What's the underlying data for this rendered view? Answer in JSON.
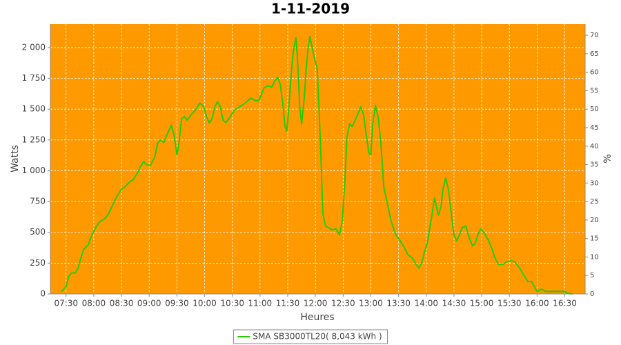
{
  "chart_data": {
    "type": "line",
    "title": "1-11-2019",
    "xlabel": "Heures",
    "ylabel": "Watts",
    "y2label": "%",
    "x": [
      "07:25",
      "07:30",
      "07:33",
      "07:36",
      "07:40",
      "07:43",
      "07:46",
      "07:49",
      "07:54",
      "07:58",
      "08:03",
      "08:07",
      "08:12",
      "08:16",
      "08:21",
      "08:25",
      "08:30",
      "08:34",
      "08:39",
      "08:43",
      "08:48",
      "08:51",
      "08:54",
      "08:57",
      "09:01",
      "09:06",
      "09:09",
      "09:12",
      "09:16",
      "09:19",
      "09:24",
      "09:27",
      "09:30",
      "09:32",
      "09:35",
      "09:38",
      "09:41",
      "09:46",
      "09:50",
      "09:55",
      "09:59",
      "10:02",
      "10:05",
      "10:08",
      "10:11",
      "10:14",
      "10:17",
      "10:20",
      "10:23",
      "10:28",
      "10:32",
      "10:38",
      "10:44",
      "10:50",
      "10:55",
      "10:59",
      "11:04",
      "11:08",
      "11:13",
      "11:16",
      "11:19",
      "11:22",
      "11:25",
      "11:27",
      "11:29",
      "11:31",
      "11:33",
      "11:36",
      "11:39",
      "11:41",
      "11:43",
      "11:45",
      "11:48",
      "11:50",
      "11:52",
      "11:54",
      "11:56",
      "11:59",
      "12:02",
      "12:04",
      "12:06",
      "12:08",
      "12:11",
      "12:14",
      "12:18",
      "12:22",
      "12:26",
      "12:29",
      "12:32",
      "12:34",
      "12:37",
      "12:40",
      "12:43",
      "12:46",
      "12:49",
      "12:52",
      "12:55",
      "12:58",
      "13:00",
      "13:02",
      "13:05",
      "13:08",
      "13:11",
      "13:14",
      "13:18",
      "13:22",
      "13:27",
      "13:31",
      "13:36",
      "13:40",
      "13:45",
      "13:49",
      "13:52",
      "13:55",
      "13:58",
      "14:01",
      "14:04",
      "14:07",
      "14:09",
      "14:11",
      "14:13",
      "14:16",
      "14:18",
      "14:21",
      "14:24",
      "14:27",
      "14:30",
      "14:33",
      "14:36",
      "14:39",
      "14:43",
      "14:46",
      "14:50",
      "14:53",
      "14:56",
      "14:59",
      "15:03",
      "15:07",
      "15:11",
      "15:14",
      "15:18",
      "15:23",
      "15:27",
      "15:32",
      "15:36",
      "15:41",
      "15:45",
      "15:50",
      "15:54",
      "15:57",
      "16:00",
      "16:05",
      "16:09",
      "16:14",
      "16:24",
      "16:30",
      "16:33",
      "16:38"
    ],
    "series": [
      {
        "name": "SMA SB3000TL20( 8,043 kWh )",
        "color": "#22cc00",
        "values": [
          20,
          60,
          145,
          170,
          170,
          210,
          290,
          360,
          400,
          480,
          550,
          590,
          610,
          650,
          730,
          790,
          850,
          870,
          910,
          930,
          990,
          1040,
          1075,
          1050,
          1040,
          1110,
          1220,
          1250,
          1230,
          1290,
          1370,
          1290,
          1130,
          1210,
          1420,
          1440,
          1410,
          1460,
          1490,
          1550,
          1520,
          1440,
          1390,
          1420,
          1520,
          1560,
          1520,
          1410,
          1390,
          1440,
          1490,
          1520,
          1550,
          1590,
          1570,
          1570,
          1670,
          1690,
          1680,
          1730,
          1760,
          1700,
          1520,
          1360,
          1320,
          1490,
          1710,
          1970,
          2080,
          1850,
          1520,
          1380,
          1600,
          1830,
          1990,
          2090,
          2020,
          1910,
          1830,
          1490,
          1100,
          650,
          550,
          540,
          520,
          530,
          480,
          590,
          930,
          1270,
          1380,
          1360,
          1410,
          1460,
          1520,
          1460,
          1290,
          1140,
          1130,
          1380,
          1530,
          1430,
          1210,
          870,
          730,
          590,
          480,
          440,
          380,
          320,
          290,
          240,
          210,
          250,
          340,
          410,
          540,
          680,
          780,
          710,
          640,
          710,
          850,
          940,
          850,
          660,
          480,
          430,
          480,
          540,
          550,
          470,
          390,
          410,
          480,
          530,
          490,
          440,
          370,
          300,
          240,
          240,
          260,
          270,
          260,
          210,
          160,
          100,
          100,
          60,
          20,
          40,
          20,
          20,
          20,
          20,
          5,
          0
        ]
      }
    ],
    "xlim": [
      "07:13",
      "16:52"
    ],
    "xticks": [
      "07:30",
      "08:00",
      "08:30",
      "09:00",
      "09:30",
      "10:00",
      "10:30",
      "11:00",
      "11:30",
      "12:00",
      "12:30",
      "13:00",
      "13:30",
      "14:00",
      "14:30",
      "15:00",
      "15:30",
      "16:00",
      "16:30"
    ],
    "ylim": [
      0,
      2190
    ],
    "yticks": [
      0,
      250,
      500,
      750,
      {
        "value": 1000,
        "label": "1 000"
      },
      {
        "value": 1250,
        "label": "1 250"
      },
      {
        "value": 1500,
        "label": "1 500"
      },
      {
        "value": 1750,
        "label": "1 750"
      },
      {
        "value": 2000,
        "label": "2 000"
      }
    ],
    "y2lim": [
      0,
      73
    ],
    "y2ticks": [
      0,
      5,
      10,
      15,
      20,
      25,
      30,
      35,
      40,
      45,
      50,
      55,
      60,
      65,
      70
    ],
    "grid": true,
    "plot_background": "#ff9900",
    "legend": "bottom"
  }
}
